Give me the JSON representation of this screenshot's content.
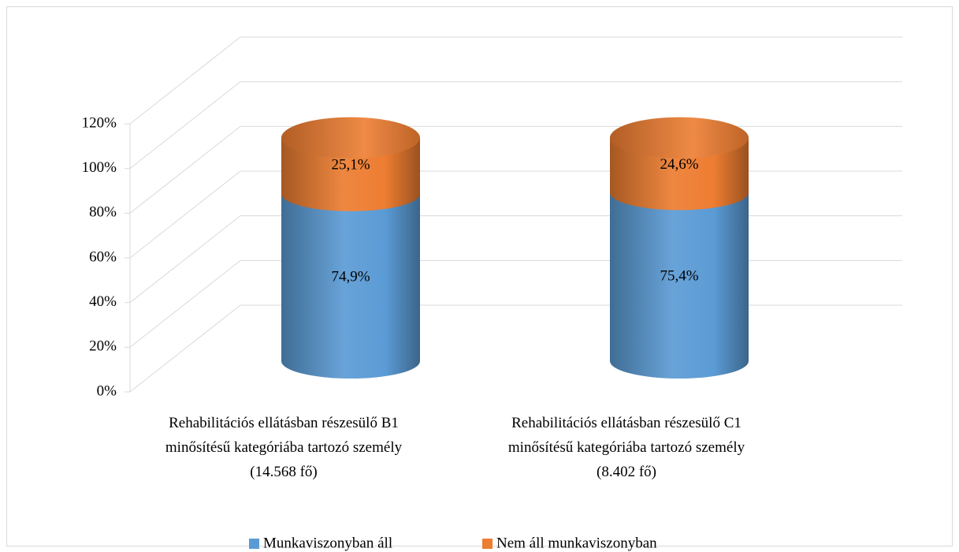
{
  "chart_data": {
    "type": "cylinder_stacked",
    "categories": [
      "Rehabilitációs ellátásban részesülő B1 minősítésű kategóriába tartozó személy (14.568 fő)",
      "Rehabilitációs ellátásban részesülő C1 minősítésű kategóriába tartozó személy (8.402 fő)"
    ],
    "series": [
      {
        "name": "Munkaviszonyban áll",
        "color": "#5b9bd5",
        "values": [
          74.9,
          75.4
        ],
        "value_labels": [
          "74,9%",
          "75,4%"
        ]
      },
      {
        "name": "Nem áll munkaviszonyban",
        "color": "#ed7d31",
        "values": [
          25.1,
          24.6
        ],
        "value_labels": [
          "25,1%",
          "24,6%"
        ]
      }
    ],
    "ylim": [
      0,
      120
    ],
    "yticks": [
      {
        "value": 0,
        "label": "0%"
      },
      {
        "value": 20,
        "label": "20%"
      },
      {
        "value": 40,
        "label": "40%"
      },
      {
        "value": 60,
        "label": "60%"
      },
      {
        "value": 80,
        "label": "80%"
      },
      {
        "value": 100,
        "label": "100%"
      },
      {
        "value": 120,
        "label": "120%"
      }
    ],
    "grid": true,
    "legend": "bottom"
  }
}
